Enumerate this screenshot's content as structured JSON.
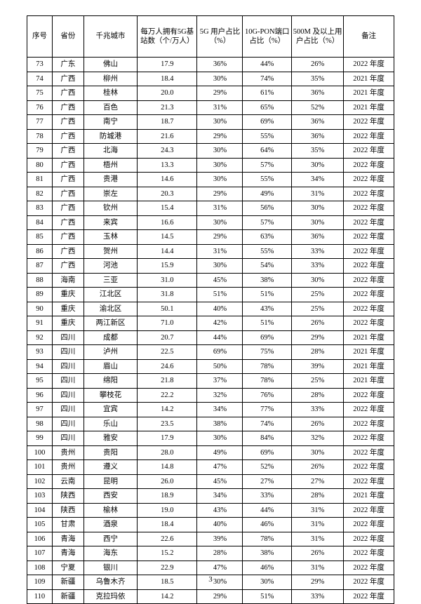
{
  "page_number": "3",
  "headers": {
    "index": "序号",
    "province": "省份",
    "city": "千兆城市",
    "bs_per_10k": "每万人拥有5G基站数（个/万人）",
    "ratio_5g": "5G 用户占比（%）",
    "ratio_10gpon": "10G-PON端口占比（%）",
    "ratio_500m": "500M 及以上用户占比（%）",
    "note": "备注"
  },
  "rows": [
    {
      "idx": "73",
      "prov": "广东",
      "city": "佛山",
      "bs": "17.9",
      "r5g": "36%",
      "rpon": "44%",
      "r500": "26%",
      "note": "2022 年度"
    },
    {
      "idx": "74",
      "prov": "广西",
      "city": "柳州",
      "bs": "18.4",
      "r5g": "30%",
      "rpon": "74%",
      "r500": "35%",
      "note": "2021 年度"
    },
    {
      "idx": "75",
      "prov": "广西",
      "city": "桂林",
      "bs": "20.0",
      "r5g": "29%",
      "rpon": "61%",
      "r500": "36%",
      "note": "2021 年度"
    },
    {
      "idx": "76",
      "prov": "广西",
      "city": "百色",
      "bs": "21.3",
      "r5g": "31%",
      "rpon": "65%",
      "r500": "52%",
      "note": "2021 年度"
    },
    {
      "idx": "77",
      "prov": "广西",
      "city": "南宁",
      "bs": "18.7",
      "r5g": "30%",
      "rpon": "69%",
      "r500": "36%",
      "note": "2022 年度"
    },
    {
      "idx": "78",
      "prov": "广西",
      "city": "防城港",
      "bs": "21.6",
      "r5g": "29%",
      "rpon": "55%",
      "r500": "36%",
      "note": "2022 年度"
    },
    {
      "idx": "79",
      "prov": "广西",
      "city": "北海",
      "bs": "24.3",
      "r5g": "30%",
      "rpon": "64%",
      "r500": "35%",
      "note": "2022 年度"
    },
    {
      "idx": "80",
      "prov": "广西",
      "city": "梧州",
      "bs": "13.3",
      "r5g": "30%",
      "rpon": "57%",
      "r500": "30%",
      "note": "2022 年度"
    },
    {
      "idx": "81",
      "prov": "广西",
      "city": "贵港",
      "bs": "14.6",
      "r5g": "30%",
      "rpon": "55%",
      "r500": "34%",
      "note": "2022 年度"
    },
    {
      "idx": "82",
      "prov": "广西",
      "city": "崇左",
      "bs": "20.3",
      "r5g": "29%",
      "rpon": "49%",
      "r500": "31%",
      "note": "2022 年度"
    },
    {
      "idx": "83",
      "prov": "广西",
      "city": "钦州",
      "bs": "15.4",
      "r5g": "31%",
      "rpon": "56%",
      "r500": "30%",
      "note": "2022 年度"
    },
    {
      "idx": "84",
      "prov": "广西",
      "city": "来宾",
      "bs": "16.6",
      "r5g": "30%",
      "rpon": "57%",
      "r500": "30%",
      "note": "2022 年度"
    },
    {
      "idx": "85",
      "prov": "广西",
      "city": "玉林",
      "bs": "14.5",
      "r5g": "29%",
      "rpon": "63%",
      "r500": "36%",
      "note": "2022 年度"
    },
    {
      "idx": "86",
      "prov": "广西",
      "city": "贺州",
      "bs": "14.4",
      "r5g": "31%",
      "rpon": "55%",
      "r500": "33%",
      "note": "2022 年度"
    },
    {
      "idx": "87",
      "prov": "广西",
      "city": "河池",
      "bs": "15.9",
      "r5g": "30%",
      "rpon": "54%",
      "r500": "33%",
      "note": "2022 年度"
    },
    {
      "idx": "88",
      "prov": "海南",
      "city": "三亚",
      "bs": "31.0",
      "r5g": "45%",
      "rpon": "38%",
      "r500": "30%",
      "note": "2022 年度"
    },
    {
      "idx": "89",
      "prov": "重庆",
      "city": "江北区",
      "bs": "31.8",
      "r5g": "51%",
      "rpon": "51%",
      "r500": "25%",
      "note": "2022 年度"
    },
    {
      "idx": "90",
      "prov": "重庆",
      "city": "渝北区",
      "bs": "50.1",
      "r5g": "40%",
      "rpon": "43%",
      "r500": "25%",
      "note": "2022 年度"
    },
    {
      "idx": "91",
      "prov": "重庆",
      "city": "两江新区",
      "bs": "71.0",
      "r5g": "42%",
      "rpon": "51%",
      "r500": "26%",
      "note": "2022 年度"
    },
    {
      "idx": "92",
      "prov": "四川",
      "city": "成都",
      "bs": "20.7",
      "r5g": "44%",
      "rpon": "69%",
      "r500": "29%",
      "note": "2021 年度"
    },
    {
      "idx": "93",
      "prov": "四川",
      "city": "泸州",
      "bs": "22.5",
      "r5g": "69%",
      "rpon": "75%",
      "r500": "28%",
      "note": "2021 年度"
    },
    {
      "idx": "94",
      "prov": "四川",
      "city": "眉山",
      "bs": "24.6",
      "r5g": "50%",
      "rpon": "78%",
      "r500": "39%",
      "note": "2021 年度"
    },
    {
      "idx": "95",
      "prov": "四川",
      "city": "绵阳",
      "bs": "21.8",
      "r5g": "37%",
      "rpon": "78%",
      "r500": "25%",
      "note": "2021 年度"
    },
    {
      "idx": "96",
      "prov": "四川",
      "city": "攀枝花",
      "bs": "22.2",
      "r5g": "32%",
      "rpon": "76%",
      "r500": "28%",
      "note": "2022 年度"
    },
    {
      "idx": "97",
      "prov": "四川",
      "city": "宜宾",
      "bs": "14.2",
      "r5g": "34%",
      "rpon": "77%",
      "r500": "33%",
      "note": "2022 年度"
    },
    {
      "idx": "98",
      "prov": "四川",
      "city": "乐山",
      "bs": "23.5",
      "r5g": "38%",
      "rpon": "74%",
      "r500": "26%",
      "note": "2022 年度"
    },
    {
      "idx": "99",
      "prov": "四川",
      "city": "雅安",
      "bs": "17.9",
      "r5g": "30%",
      "rpon": "84%",
      "r500": "32%",
      "note": "2022 年度"
    },
    {
      "idx": "100",
      "prov": "贵州",
      "city": "贵阳",
      "bs": "28.0",
      "r5g": "49%",
      "rpon": "69%",
      "r500": "30%",
      "note": "2022 年度"
    },
    {
      "idx": "101",
      "prov": "贵州",
      "city": "遵义",
      "bs": "14.8",
      "r5g": "47%",
      "rpon": "52%",
      "r500": "26%",
      "note": "2022 年度"
    },
    {
      "idx": "102",
      "prov": "云南",
      "city": "昆明",
      "bs": "26.0",
      "r5g": "45%",
      "rpon": "27%",
      "r500": "27%",
      "note": "2022 年度"
    },
    {
      "idx": "103",
      "prov": "陕西",
      "city": "西安",
      "bs": "18.9",
      "r5g": "34%",
      "rpon": "33%",
      "r500": "28%",
      "note": "2021 年度"
    },
    {
      "idx": "104",
      "prov": "陕西",
      "city": "榆林",
      "bs": "19.0",
      "r5g": "43%",
      "rpon": "44%",
      "r500": "31%",
      "note": "2022 年度"
    },
    {
      "idx": "105",
      "prov": "甘肃",
      "city": "酒泉",
      "bs": "18.4",
      "r5g": "40%",
      "rpon": "46%",
      "r500": "31%",
      "note": "2022 年度"
    },
    {
      "idx": "106",
      "prov": "青海",
      "city": "西宁",
      "bs": "22.6",
      "r5g": "39%",
      "rpon": "78%",
      "r500": "31%",
      "note": "2022 年度"
    },
    {
      "idx": "107",
      "prov": "青海",
      "city": "海东",
      "bs": "15.2",
      "r5g": "28%",
      "rpon": "38%",
      "r500": "26%",
      "note": "2022 年度"
    },
    {
      "idx": "108",
      "prov": "宁夏",
      "city": "银川",
      "bs": "22.9",
      "r5g": "47%",
      "rpon": "46%",
      "r500": "31%",
      "note": "2022 年度"
    },
    {
      "idx": "109",
      "prov": "新疆",
      "city": "乌鲁木齐",
      "bs": "18.5",
      "r5g": "30%",
      "rpon": "30%",
      "r500": "29%",
      "note": "2022 年度"
    },
    {
      "idx": "110",
      "prov": "新疆",
      "city": "克拉玛依",
      "bs": "14.2",
      "r5g": "29%",
      "rpon": "51%",
      "r500": "33%",
      "note": "2022 年度"
    }
  ]
}
